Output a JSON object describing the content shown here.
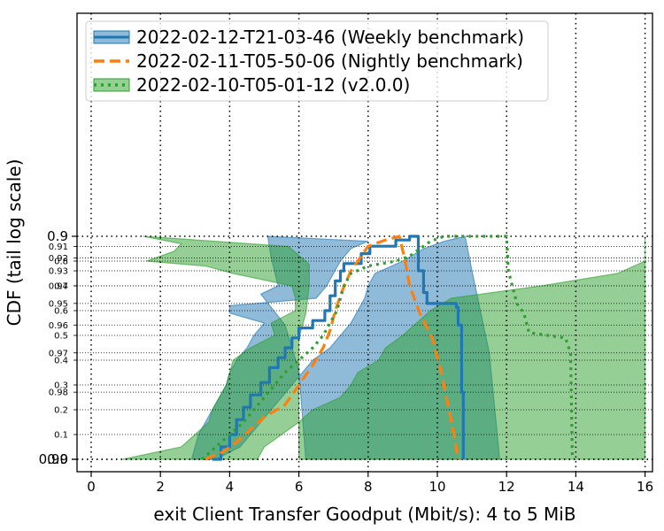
{
  "chart_data": {
    "type": "line",
    "subtype": "cdf-with-confidence-bands",
    "title": "",
    "xlabel": "exit Client Transfer Goodput (Mbit/s): 4 to 5 MiB",
    "ylabel": "CDF (tail log scale)",
    "xlim": [
      -0.4,
      16.2
    ],
    "ylim": [
      0.0,
      0.99
    ],
    "y_scale": "tail-log",
    "x_ticks": [
      0,
      2,
      4,
      6,
      8,
      10,
      12,
      14,
      16
    ],
    "x_tick_labels": [
      "0",
      "2",
      "4",
      "6",
      "8",
      "10",
      "12",
      "14",
      "16"
    ],
    "y_ticks_major": [
      0.0,
      0.9,
      0.99
    ],
    "y_tick_labels_major": [
      "0.0",
      "0.9",
      "0.99"
    ],
    "y_ticks_minor": [
      0.1,
      0.2,
      0.3,
      0.4,
      0.5,
      0.6,
      0.7,
      0.8,
      0.91,
      0.92,
      0.93,
      0.94,
      0.95,
      0.96,
      0.97,
      0.98
    ],
    "y_tick_labels_minor": [
      "0.1",
      "0.2",
      "0.3",
      "0.4",
      "0.5",
      "0.6",
      "0.7",
      "0.8",
      "0.91",
      "0.92",
      "0.93",
      "0.94",
      "0.95",
      "0.96",
      "0.97",
      "0.98"
    ],
    "grid": true,
    "legend_position": "top-left",
    "series": [
      {
        "name": "2022-02-12-T21-03-46 (Weekly benchmark)",
        "color": "#1f77b4",
        "linestyle": "solid",
        "points": [
          [
            3.5,
            0.0
          ],
          [
            3.75,
            0.05
          ],
          [
            4.0,
            0.1
          ],
          [
            4.2,
            0.16
          ],
          [
            4.4,
            0.21
          ],
          [
            4.6,
            0.26
          ],
          [
            4.9,
            0.31
          ],
          [
            5.15,
            0.37
          ],
          [
            5.4,
            0.41
          ],
          [
            5.6,
            0.45
          ],
          [
            5.8,
            0.49
          ],
          [
            6.0,
            0.53
          ],
          [
            6.4,
            0.56
          ],
          [
            6.75,
            0.6
          ],
          [
            6.9,
            0.66
          ],
          [
            7.05,
            0.72
          ],
          [
            7.2,
            0.76
          ],
          [
            7.3,
            0.79
          ],
          [
            7.7,
            0.79
          ],
          [
            7.8,
            0.83
          ],
          [
            8.05,
            0.86
          ],
          [
            8.8,
            0.885
          ],
          [
            9.2,
            0.9
          ],
          [
            9.45,
            0.93
          ],
          [
            9.6,
            0.944
          ],
          [
            9.7,
            0.95
          ],
          [
            10.55,
            0.952
          ],
          [
            10.6,
            0.96
          ],
          [
            10.7,
            0.98
          ],
          [
            10.75,
            0.99
          ]
        ],
        "band": {
          "lower": [
            [
              2.9,
              0.0
            ],
            [
              3.0,
              0.05
            ],
            [
              3.1,
              0.1
            ],
            [
              3.3,
              0.15
            ],
            [
              3.5,
              0.2
            ],
            [
              3.7,
              0.25
            ],
            [
              3.9,
              0.3
            ],
            [
              4.0,
              0.35
            ],
            [
              4.2,
              0.4
            ],
            [
              4.5,
              0.45
            ],
            [
              4.7,
              0.5
            ],
            [
              5.0,
              0.55
            ],
            [
              4.0,
              0.59
            ],
            [
              4.0,
              0.62
            ],
            [
              6.5,
              0.65
            ],
            [
              6.8,
              0.7
            ],
            [
              7.0,
              0.75
            ],
            [
              7.2,
              0.8
            ],
            [
              7.5,
              0.85
            ],
            [
              8.0,
              0.88
            ],
            [
              5.1,
              0.9
            ],
            [
              5.2,
              0.92
            ],
            [
              5.4,
              0.94
            ],
            [
              4.9,
              0.945
            ],
            [
              5.6,
              0.96
            ],
            [
              6.0,
              0.975
            ],
            [
              6.2,
              0.99
            ]
          ],
          "upper": [
            [
              3.6,
              0.0
            ],
            [
              4.3,
              0.05
            ],
            [
              4.6,
              0.1
            ],
            [
              4.9,
              0.15
            ],
            [
              5.2,
              0.2
            ],
            [
              5.5,
              0.25
            ],
            [
              5.8,
              0.3
            ],
            [
              6.1,
              0.35
            ],
            [
              6.4,
              0.4
            ],
            [
              6.9,
              0.45
            ],
            [
              7.2,
              0.5
            ],
            [
              7.5,
              0.55
            ],
            [
              7.7,
              0.6
            ],
            [
              7.9,
              0.65
            ],
            [
              8.0,
              0.7
            ],
            [
              8.2,
              0.75
            ],
            [
              9.0,
              0.8
            ],
            [
              9.6,
              0.85
            ],
            [
              10.2,
              0.88
            ],
            [
              10.8,
              0.9
            ],
            [
              11.0,
              0.93
            ],
            [
              11.2,
              0.95
            ],
            [
              11.5,
              0.97
            ],
            [
              11.8,
              0.99
            ]
          ]
        }
      },
      {
        "name": "2022-02-11-T05-50-06 (Nightly benchmark)",
        "color": "#ff7f0e",
        "linestyle": "dashed",
        "points": [
          [
            3.3,
            0.0
          ],
          [
            3.8,
            0.03
          ],
          [
            4.2,
            0.07
          ],
          [
            4.6,
            0.12
          ],
          [
            5.0,
            0.17
          ],
          [
            5.6,
            0.22
          ],
          [
            6.0,
            0.3
          ],
          [
            6.4,
            0.38
          ],
          [
            6.7,
            0.45
          ],
          [
            6.9,
            0.52
          ],
          [
            7.05,
            0.6
          ],
          [
            7.25,
            0.68
          ],
          [
            7.5,
            0.76
          ],
          [
            7.8,
            0.82
          ],
          [
            8.0,
            0.86
          ],
          [
            8.5,
            0.885
          ],
          [
            8.9,
            0.9
          ],
          [
            9.05,
            0.92
          ],
          [
            9.2,
            0.94
          ],
          [
            9.5,
            0.955
          ],
          [
            9.85,
            0.965
          ],
          [
            10.1,
            0.975
          ],
          [
            10.4,
            0.985
          ],
          [
            10.6,
            0.99
          ]
        ]
      },
      {
        "name": "2022-02-10-T05-01-12 (v2.0.0)",
        "color": "#2ca02c",
        "linestyle": "dotted",
        "points": [
          [
            3.2,
            0.0
          ],
          [
            3.6,
            0.05
          ],
          [
            4.0,
            0.1
          ],
          [
            4.4,
            0.15
          ],
          [
            4.7,
            0.2
          ],
          [
            5.0,
            0.25
          ],
          [
            5.3,
            0.3
          ],
          [
            5.6,
            0.35
          ],
          [
            6.0,
            0.4
          ],
          [
            6.4,
            0.45
          ],
          [
            6.7,
            0.5
          ],
          [
            6.9,
            0.55
          ],
          [
            7.1,
            0.6
          ],
          [
            7.3,
            0.7
          ],
          [
            7.5,
            0.75
          ],
          [
            8.0,
            0.78
          ],
          [
            8.8,
            0.8
          ],
          [
            9.2,
            0.82
          ],
          [
            9.5,
            0.85
          ],
          [
            9.8,
            0.88
          ],
          [
            10.2,
            0.9
          ],
          [
            12.0,
            0.9
          ],
          [
            12.05,
            0.93
          ],
          [
            12.3,
            0.95
          ],
          [
            12.5,
            0.955
          ],
          [
            12.65,
            0.963
          ],
          [
            13.7,
            0.965
          ],
          [
            13.85,
            0.97
          ],
          [
            13.9,
            0.99
          ]
        ],
        "band": {
          "lower": [
            [
              0.9,
              0.0
            ],
            [
              2.6,
              0.05
            ],
            [
              3.0,
              0.1
            ],
            [
              3.4,
              0.15
            ],
            [
              3.5,
              0.2
            ],
            [
              3.7,
              0.25
            ],
            [
              3.9,
              0.3
            ],
            [
              4.0,
              0.35
            ],
            [
              4.1,
              0.4
            ],
            [
              4.6,
              0.45
            ],
            [
              5.3,
              0.5
            ],
            [
              5.2,
              0.55
            ],
            [
              5.9,
              0.6
            ],
            [
              5.9,
              0.65
            ],
            [
              5.8,
              0.7
            ],
            [
              4.1,
              0.75
            ],
            [
              3.3,
              0.78
            ],
            [
              1.6,
              0.8
            ],
            [
              2.4,
              0.84
            ],
            [
              2.6,
              0.87
            ],
            [
              1.5,
              0.9
            ],
            [
              5.7,
              0.91
            ],
            [
              6.3,
              0.925
            ],
            [
              6.3,
              0.94
            ],
            [
              6.2,
              0.955
            ],
            [
              6.0,
              0.965
            ],
            [
              6.0,
              0.975
            ],
            [
              6.0,
              0.99
            ]
          ],
          "upper": [
            [
              4.8,
              0.0
            ],
            [
              5.0,
              0.05
            ],
            [
              5.5,
              0.1
            ],
            [
              6.0,
              0.15
            ],
            [
              6.4,
              0.2
            ],
            [
              7.2,
              0.25
            ],
            [
              7.5,
              0.3
            ],
            [
              7.7,
              0.35
            ],
            [
              8.3,
              0.4
            ],
            [
              8.5,
              0.45
            ],
            [
              9.0,
              0.5
            ],
            [
              9.4,
              0.55
            ],
            [
              9.8,
              0.6
            ],
            [
              10.4,
              0.65
            ],
            [
              13.0,
              0.7
            ],
            [
              15.2,
              0.75
            ],
            [
              16.0,
              0.8
            ],
            [
              16.0,
              0.83
            ],
            [
              16.0,
              0.86
            ],
            [
              16.0,
              0.9
            ],
            [
              16.0,
              0.93
            ],
            [
              16.0,
              0.95
            ],
            [
              16.0,
              0.97
            ],
            [
              16.0,
              0.99
            ]
          ]
        }
      }
    ]
  }
}
